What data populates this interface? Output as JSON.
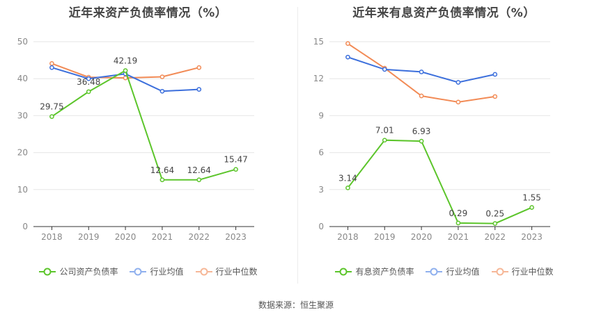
{
  "chart_data": [
    {
      "type": "line",
      "title": "近年来资产负债率情况（%）",
      "categories": [
        "2018",
        "2019",
        "2020",
        "2021",
        "2022",
        "2023"
      ],
      "ylim": [
        0,
        50
      ],
      "yticks": [
        0,
        10,
        20,
        30,
        40,
        50
      ],
      "series": [
        {
          "name": "公司资产负债率",
          "color": "#5cc52b",
          "values": [
            29.75,
            36.48,
            42.19,
            12.64,
            12.64,
            15.47
          ],
          "labels": [
            "29.75",
            "36.48",
            "42.19",
            "12.64",
            "12.64",
            "15.47"
          ]
        },
        {
          "name": "行业均值",
          "color": "#3c6fdc",
          "values": [
            43.0,
            40.0,
            41.3,
            36.6,
            37.1,
            null
          ]
        },
        {
          "name": "行业中位数",
          "color": "#f28b56",
          "values": [
            44.1,
            40.4,
            40.2,
            40.5,
            43.0,
            null
          ]
        }
      ]
    },
    {
      "type": "line",
      "title": "近年来有息资产负债率情况（%）",
      "categories": [
        "2018",
        "2019",
        "2020",
        "2021",
        "2022",
        "2023"
      ],
      "ylim": [
        0,
        15
      ],
      "yticks": [
        0,
        3,
        6,
        9,
        12,
        15
      ],
      "series": [
        {
          "name": "有息资产负债率",
          "color": "#5cc52b",
          "values": [
            3.14,
            7.01,
            6.93,
            0.29,
            0.25,
            1.55
          ],
          "labels": [
            "3.14",
            "7.01",
            "6.93",
            "0.29",
            "0.25",
            "1.55"
          ]
        },
        {
          "name": "行业均值",
          "color": "#3c6fdc",
          "values": [
            13.75,
            12.75,
            12.55,
            11.7,
            12.35,
            null
          ]
        },
        {
          "name": "行业中位数",
          "color": "#f28b56",
          "values": [
            14.85,
            12.85,
            10.6,
            10.1,
            10.55,
            null
          ]
        }
      ]
    }
  ],
  "footer": {
    "source": "数据来源：恒生聚源"
  }
}
